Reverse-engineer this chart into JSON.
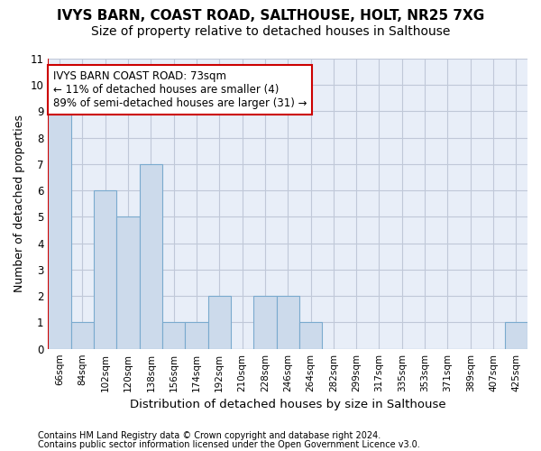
{
  "title1": "IVYS BARN, COAST ROAD, SALTHOUSE, HOLT, NR25 7XG",
  "title2": "Size of property relative to detached houses in Salthouse",
  "xlabel": "Distribution of detached houses by size in Salthouse",
  "ylabel": "Number of detached properties",
  "footer1": "Contains HM Land Registry data © Crown copyright and database right 2024.",
  "footer2": "Contains public sector information licensed under the Open Government Licence v3.0.",
  "categories": [
    "66sqm",
    "84sqm",
    "102sqm",
    "120sqm",
    "138sqm",
    "156sqm",
    "174sqm",
    "192sqm",
    "210sqm",
    "228sqm",
    "246sqm",
    "264sqm",
    "282sqm",
    "299sqm",
    "317sqm",
    "335sqm",
    "353sqm",
    "371sqm",
    "389sqm",
    "407sqm",
    "425sqm"
  ],
  "values": [
    9,
    1,
    6,
    5,
    7,
    1,
    1,
    2,
    0,
    2,
    2,
    1,
    0,
    0,
    0,
    0,
    0,
    0,
    0,
    0,
    1
  ],
  "bar_color": "#ccdaeb",
  "bar_edge_color": "#7aaace",
  "ylim": [
    0,
    11
  ],
  "yticks": [
    0,
    1,
    2,
    3,
    4,
    5,
    6,
    7,
    8,
    9,
    10,
    11
  ],
  "annotation_line1": "IVYS BARN COAST ROAD: 73sqm",
  "annotation_line2": "← 11% of detached houses are smaller (4)",
  "annotation_line3": "89% of semi-detached houses are larger (31) →",
  "annotation_box_color": "#ffffff",
  "annotation_border_color": "#cc0000",
  "subject_line_color": "#cc0000",
  "background_color": "#ffffff",
  "plot_background_color": "#e8eef8",
  "grid_color": "#c0c8d8",
  "title1_fontsize": 11,
  "title2_fontsize": 10
}
